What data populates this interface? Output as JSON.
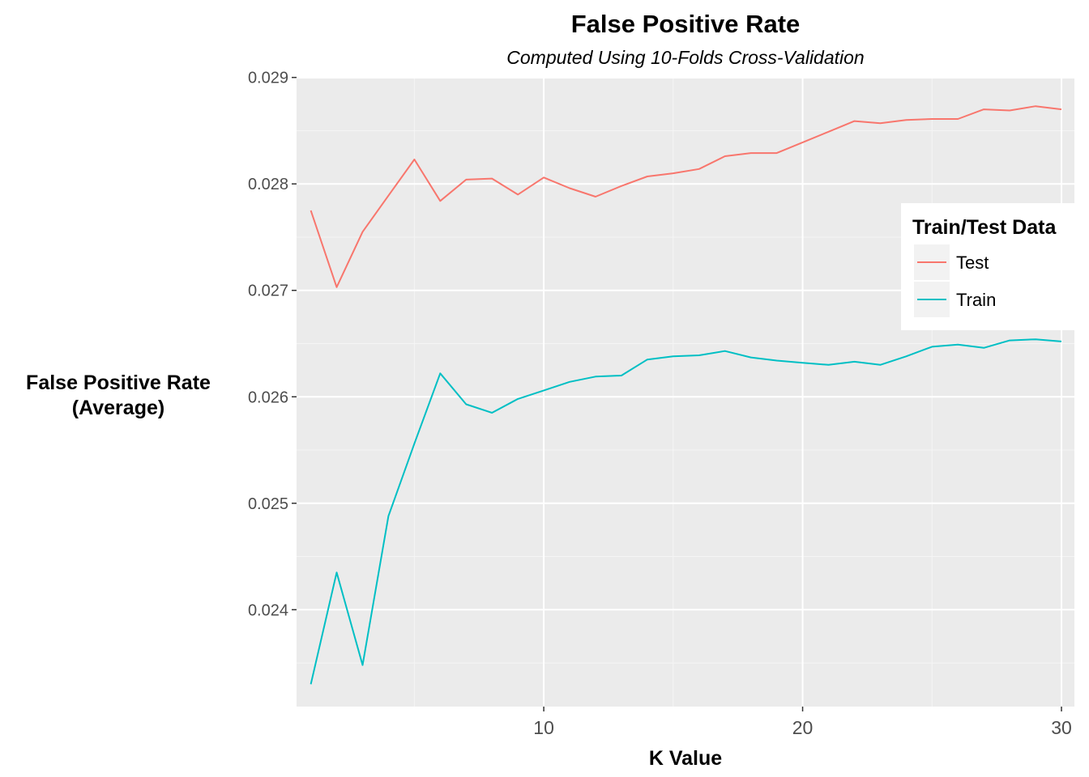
{
  "chart_data": {
    "type": "line",
    "title": "False Positive Rate",
    "subtitle": "Computed Using 10-Folds Cross-Validation",
    "xlabel": "K Value",
    "ylabel_line1": "False Positive Rate",
    "ylabel_line2": "(Average)",
    "xlim": [
      0.45,
      30.5
    ],
    "ylim": [
      0.02309,
      0.02899
    ],
    "x_ticks": [
      10,
      20,
      30
    ],
    "x_tick_labels": [
      "10",
      "20",
      "30"
    ],
    "y_ticks": [
      0.024,
      0.025,
      0.026,
      0.027,
      0.028,
      0.029
    ],
    "y_tick_labels": [
      "0.024",
      "0.025",
      "0.026",
      "0.027",
      "0.028",
      "0.029"
    ],
    "grid": true,
    "legend": {
      "title": "Train/Test Data",
      "position": "right"
    },
    "x": [
      1,
      2,
      3,
      4,
      5,
      6,
      7,
      8,
      9,
      10,
      11,
      12,
      13,
      14,
      15,
      16,
      17,
      18,
      19,
      20,
      21,
      22,
      23,
      24,
      25,
      26,
      27,
      28,
      29,
      30
    ],
    "series": [
      {
        "name": "Test",
        "color": "#F8766D",
        "values": [
          0.02775,
          0.02703,
          0.02755,
          0.02789,
          0.02823,
          0.02784,
          0.02804,
          0.02805,
          0.0279,
          0.02806,
          0.02796,
          0.02788,
          0.02798,
          0.02807,
          0.0281,
          0.02814,
          0.02826,
          0.02829,
          0.02829,
          0.02839,
          0.02849,
          0.02859,
          0.02857,
          0.0286,
          0.02861,
          0.02861,
          0.0287,
          0.02869,
          0.02873,
          0.0287
        ]
      },
      {
        "name": "Train",
        "color": "#00BFC4",
        "values": [
          0.0233,
          0.02435,
          0.02348,
          0.02488,
          0.02556,
          0.02622,
          0.02593,
          0.02585,
          0.02598,
          0.02606,
          0.02614,
          0.02619,
          0.0262,
          0.02635,
          0.02638,
          0.02639,
          0.02643,
          0.02637,
          0.02634,
          0.02632,
          0.0263,
          0.02633,
          0.0263,
          0.02638,
          0.02647,
          0.02649,
          0.02646,
          0.02653,
          0.02654,
          0.02652
        ]
      }
    ]
  }
}
